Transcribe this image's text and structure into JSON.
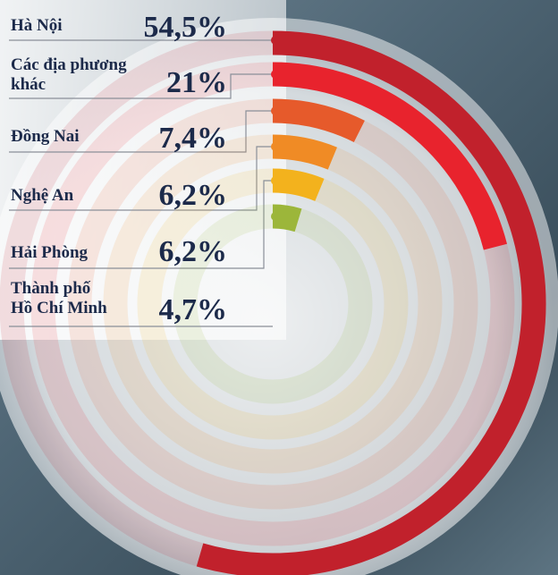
{
  "chart_data": {
    "type": "radial_bar",
    "categories": [
      "Hà Nội",
      "Các địa phương\nkhác",
      "Đồng Nai",
      "Nghệ An",
      "Hải Phòng",
      "Thành phố\nHồ Chí Minh"
    ],
    "values": [
      54.5,
      21,
      7.4,
      6.2,
      6.2,
      4.7
    ],
    "value_labels": [
      "54,5%",
      "21%",
      "7,4%",
      "6,2%",
      "6,2%",
      "4,7%"
    ],
    "colors": [
      "#c1212c",
      "#e8232d",
      "#e65a2b",
      "#f08b25",
      "#f3b21d",
      "#9cb63a"
    ]
  }
}
